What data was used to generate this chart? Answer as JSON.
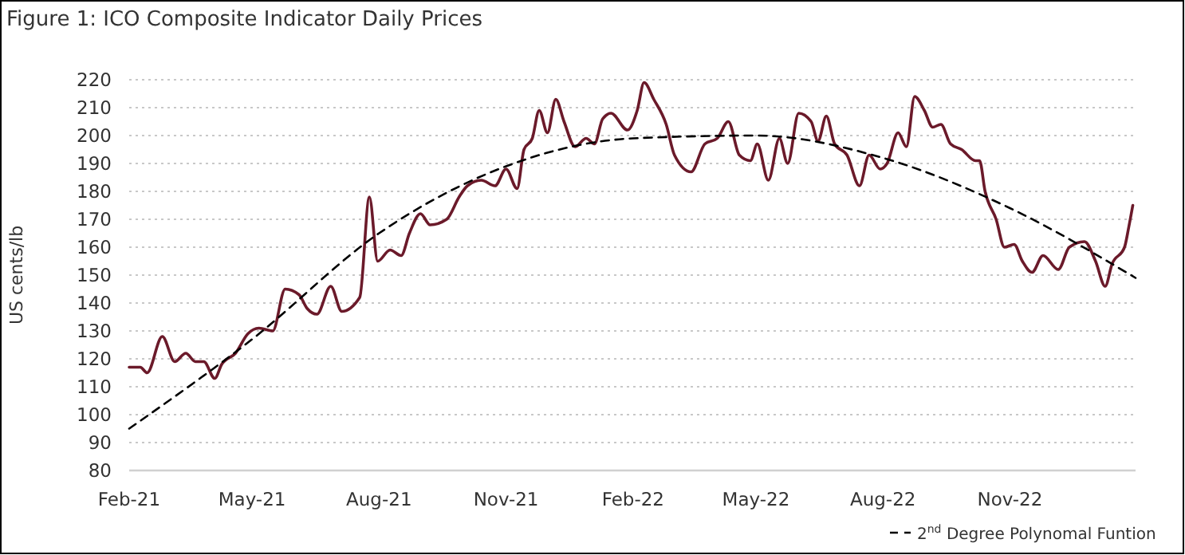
{
  "chart_data": {
    "type": "line",
    "title": "Figure 1: ICO Composite Indicator Daily Prices",
    "ylabel": "US cents/lb",
    "xlim": [
      "2021-02-01",
      "2023-01-31"
    ],
    "ylim": [
      80,
      220
    ],
    "xticks": [
      {
        "value": "2021-02-01",
        "label": "Feb-21"
      },
      {
        "value": "2021-05-01",
        "label": "May-21"
      },
      {
        "value": "2021-08-01",
        "label": "Aug-21"
      },
      {
        "value": "2021-11-01",
        "label": "Nov-21"
      },
      {
        "value": "2022-02-01",
        "label": "Feb-22"
      },
      {
        "value": "2022-05-01",
        "label": "May-22"
      },
      {
        "value": "2022-08-01",
        "label": "Aug-22"
      },
      {
        "value": "2022-11-01",
        "label": "Nov-22"
      }
    ],
    "yticks": [
      80,
      90,
      100,
      110,
      120,
      130,
      140,
      150,
      160,
      170,
      180,
      190,
      200,
      210,
      220
    ],
    "grid": "y",
    "legend": "bottom right",
    "series": [
      {
        "color": "#6b1a2a",
        "line_style": "solid",
        "x": [
          "2021-02-01",
          "2021-02-09",
          "2021-02-14",
          "2021-02-25",
          "2021-03-06",
          "2021-03-14",
          "2021-03-21",
          "2021-03-27",
          "2021-04-04",
          "2021-04-09",
          "2021-04-19",
          "2021-04-28",
          "2021-05-06",
          "2021-05-16",
          "2021-05-25",
          "2021-06-04",
          "2021-06-10",
          "2021-06-17",
          "2021-06-27",
          "2021-07-05",
          "2021-07-18",
          "2021-07-25",
          "2021-07-31",
          "2021-08-09",
          "2021-08-17",
          "2021-08-23",
          "2021-08-31",
          "2021-09-07",
          "2021-09-19",
          "2021-09-28",
          "2021-10-04",
          "2021-10-14",
          "2021-10-24",
          "2021-11-01",
          "2021-11-09",
          "2021-11-14",
          "2021-11-20",
          "2021-11-25",
          "2021-12-01",
          "2021-12-07",
          "2021-12-13",
          "2021-12-21",
          "2021-12-29",
          "2022-01-04",
          "2022-01-10",
          "2022-01-16",
          "2022-01-28",
          "2022-02-04",
          "2022-02-09",
          "2022-02-16",
          "2022-02-25",
          "2022-03-03",
          "2022-03-15",
          "2022-03-25",
          "2022-04-03",
          "2022-04-11",
          "2022-04-19",
          "2022-04-27",
          "2022-05-02",
          "2022-05-10",
          "2022-05-18",
          "2022-05-24",
          "2022-06-01",
          "2022-06-10",
          "2022-06-15",
          "2022-06-21",
          "2022-06-27",
          "2022-07-06",
          "2022-07-15",
          "2022-07-22",
          "2022-07-30",
          "2022-08-04",
          "2022-08-12",
          "2022-08-18",
          "2022-08-24",
          "2022-08-31",
          "2022-09-06",
          "2022-09-12",
          "2022-09-19",
          "2022-09-27",
          "2022-10-07",
          "2022-10-10",
          "2022-10-14",
          "2022-10-22",
          "2022-10-28",
          "2022-11-04",
          "2022-11-10",
          "2022-11-17",
          "2022-11-25",
          "2022-12-06",
          "2022-12-14",
          "2022-12-25",
          "2023-01-02",
          "2023-01-09",
          "2023-01-14",
          "2023-01-23",
          "2023-01-26",
          "2023-01-29"
        ],
        "values": [
          117,
          117,
          115,
          128,
          119,
          122,
          119,
          119,
          113,
          118,
          122,
          129,
          131,
          130,
          145,
          143,
          138,
          136,
          146,
          137,
          142,
          178,
          155,
          159,
          157,
          165,
          172,
          168,
          170,
          178,
          182,
          184,
          182,
          188,
          181,
          195,
          199,
          209,
          201,
          213,
          205,
          196,
          199,
          197,
          206,
          208,
          202,
          209,
          219,
          213,
          204,
          193,
          187,
          197,
          199,
          205,
          193,
          191,
          197,
          184,
          199,
          190,
          208,
          205,
          198,
          207,
          197,
          193,
          182,
          193,
          188,
          190,
          201,
          196,
          214,
          209,
          203,
          204,
          197,
          195,
          191,
          191,
          180,
          170,
          160,
          161,
          155,
          151,
          157,
          152,
          160,
          162,
          155,
          146,
          154,
          160,
          167,
          175
        ]
      },
      {
        "name": "2$^{nd}$ Degree Polynomal Funtion",
        "color": "#000000",
        "line_style": "dashed",
        "x": [
          "2021-02-01",
          "2021-05-01",
          "2021-08-01",
          "2021-11-01",
          "2022-02-01",
          "2022-05-01",
          "2022-08-01",
          "2022-11-01",
          "2023-01-31"
        ],
        "values": [
          95,
          127,
          165,
          189,
          199,
          200,
          192,
          174,
          149
        ]
      }
    ]
  }
}
